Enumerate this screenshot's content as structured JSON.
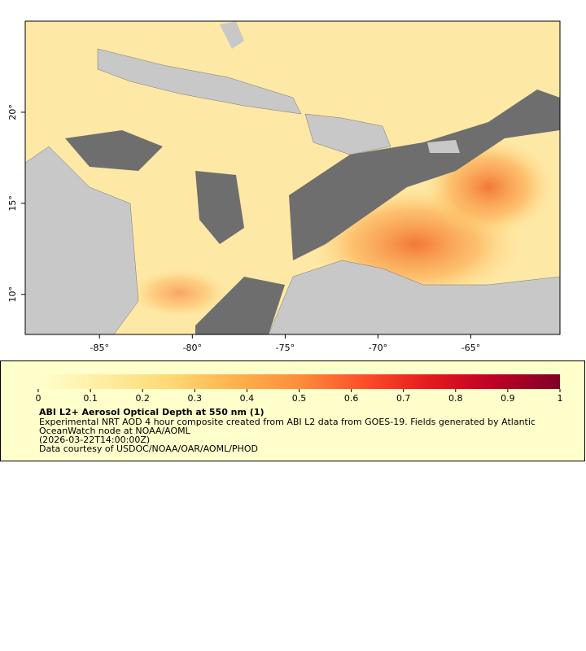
{
  "map": {
    "xlim": [
      -89,
      -60.2
    ],
    "ylim": [
      7.8,
      25
    ],
    "xticks": [
      {
        "value": -85,
        "label": "-85°"
      },
      {
        "value": -80,
        "label": "-80°"
      },
      {
        "value": -75,
        "label": "-75°"
      },
      {
        "value": -70,
        "label": "-70°"
      },
      {
        "value": -65,
        "label": "-65°"
      }
    ],
    "yticks": [
      {
        "value": 10,
        "label": "10°"
      },
      {
        "value": 15,
        "label": "15°"
      },
      {
        "value": 20,
        "label": "20°"
      }
    ]
  },
  "colorbar": {
    "lim": [
      0,
      1
    ],
    "ticks": [
      0,
      0.1,
      0.2,
      0.3,
      0.4,
      0.5,
      0.6,
      0.7,
      0.8,
      0.9,
      1
    ],
    "colormap": [
      "#ffffcc",
      "#ffeda0",
      "#fed976",
      "#feb24c",
      "#fd8d3c",
      "#fc4e2a",
      "#e31a1c",
      "#bd0026",
      "#800026"
    ]
  },
  "legend": {
    "title": "ABI L2+ Aerosol Optical Depth at 550 nm (1)",
    "lines": [
      "Experimental NRT AOD 4 hour composite created from ABI L2 data from GOES-19. Fields generated by Atlantic",
      "OceanWatch node at NOAA/AOML",
      "(2026-03-22T14:00:00Z)",
      "Data courtesy of USDOC/NOAA/OAR/AOML/PHOD"
    ]
  }
}
